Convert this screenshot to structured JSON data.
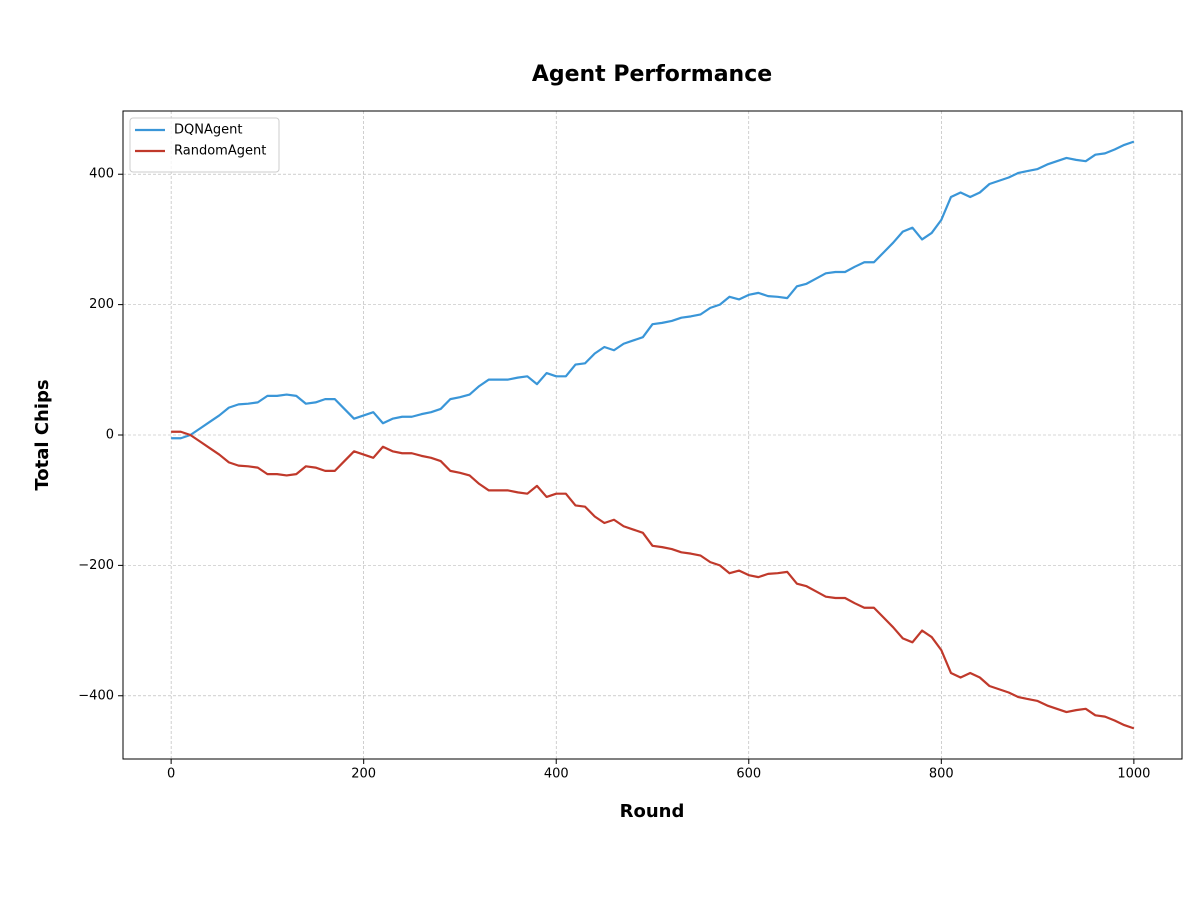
{
  "chart_data": {
    "type": "line",
    "title": "Agent Performance",
    "x_label": "Round",
    "y_label": "Total Chips",
    "x": [
      0,
      10,
      20,
      30,
      40,
      50,
      60,
      70,
      80,
      90,
      100,
      110,
      120,
      130,
      140,
      150,
      160,
      170,
      180,
      190,
      200,
      210,
      220,
      230,
      240,
      250,
      260,
      270,
      280,
      290,
      300,
      310,
      320,
      330,
      340,
      350,
      360,
      370,
      380,
      390,
      400,
      410,
      420,
      430,
      440,
      450,
      460,
      470,
      480,
      490,
      500,
      510,
      520,
      530,
      540,
      550,
      560,
      570,
      580,
      590,
      600,
      610,
      620,
      630,
      640,
      650,
      660,
      670,
      680,
      690,
      700,
      710,
      720,
      730,
      740,
      750,
      760,
      770,
      780,
      790,
      800,
      810,
      820,
      830,
      840,
      850,
      860,
      870,
      880,
      890,
      900,
      910,
      920,
      930,
      940,
      950,
      960,
      970,
      980,
      990,
      1000
    ],
    "series": [
      {
        "name": "DQNAgent",
        "color": "#3a96d8",
        "values": [
          -5,
          -5,
          0,
          10,
          20,
          30,
          42,
          47,
          48,
          50,
          60,
          60,
          62,
          60,
          48,
          50,
          55,
          55,
          40,
          25,
          30,
          35,
          18,
          25,
          28,
          28,
          32,
          35,
          40,
          55,
          58,
          62,
          75,
          85,
          85,
          85,
          88,
          90,
          78,
          95,
          90,
          90,
          108,
          110,
          125,
          135,
          130,
          140,
          145,
          150,
          170,
          172,
          175,
          180,
          182,
          185,
          195,
          200,
          212,
          208,
          215,
          218,
          213,
          212,
          210,
          228,
          232,
          240,
          248,
          250,
          250,
          258,
          265,
          265,
          280,
          295,
          312,
          318,
          300,
          310,
          330,
          365,
          372,
          365,
          372,
          385,
          390,
          395,
          402,
          405,
          408,
          415,
          420,
          425,
          422,
          420,
          430,
          432,
          438,
          445,
          450
        ]
      },
      {
        "name": "RandomAgent",
        "color": "#c0392b",
        "values": [
          5,
          5,
          0,
          -10,
          -20,
          -30,
          -42,
          -47,
          -48,
          -50,
          -60,
          -60,
          -62,
          -60,
          -48,
          -50,
          -55,
          -55,
          -40,
          -25,
          -30,
          -35,
          -18,
          -25,
          -28,
          -28,
          -32,
          -35,
          -40,
          -55,
          -58,
          -62,
          -75,
          -85,
          -85,
          -85,
          -88,
          -90,
          -78,
          -95,
          -90,
          -90,
          -108,
          -110,
          -125,
          -135,
          -130,
          -140,
          -145,
          -150,
          -170,
          -172,
          -175,
          -180,
          -182,
          -185,
          -195,
          -200,
          -212,
          -208,
          -215,
          -218,
          -213,
          -212,
          -210,
          -228,
          -232,
          -240,
          -248,
          -250,
          -250,
          -258,
          -265,
          -265,
          -280,
          -295,
          -312,
          -318,
          -300,
          -310,
          -330,
          -365,
          -372,
          -365,
          -372,
          -385,
          -390,
          -395,
          -402,
          -405,
          -408,
          -415,
          -420,
          -425,
          -422,
          -420,
          -430,
          -432,
          -438,
          -445,
          -450
        ]
      }
    ],
    "xlim": [
      -50,
      1050
    ],
    "xticks": [
      0,
      200,
      400,
      600,
      800,
      1000
    ],
    "ylim": [
      -497,
      497
    ],
    "yticks": [
      {
        "value": -400,
        "label": "−400"
      },
      {
        "value": -200,
        "label": "−200"
      },
      0,
      200,
      400
    ],
    "grid": true,
    "legend": "upper left"
  }
}
